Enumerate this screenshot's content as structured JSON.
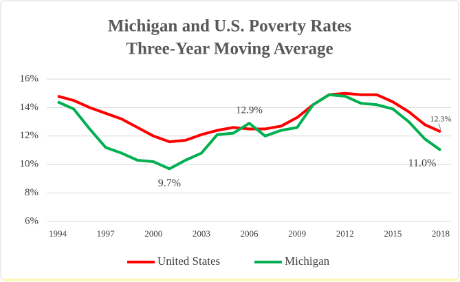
{
  "chart_data": {
    "type": "line",
    "title": "Michigan and U.S. Poverty Rates",
    "subtitle": "Three-Year Moving Average",
    "x": [
      1994,
      1995,
      1996,
      1997,
      1998,
      1999,
      2000,
      2001,
      2002,
      2003,
      2004,
      2005,
      2006,
      2007,
      2008,
      2009,
      2010,
      2011,
      2012,
      2013,
      2014,
      2015,
      2016,
      2017,
      2018
    ],
    "xlim": [
      1994,
      2018
    ],
    "xticks": [
      1994,
      1997,
      2000,
      2003,
      2006,
      2009,
      2012,
      2015,
      2018
    ],
    "ylim": [
      6,
      16
    ],
    "yticks": [
      {
        "value": 6,
        "label": "6%"
      },
      {
        "value": 8,
        "label": "8%"
      },
      {
        "value": 10,
        "label": "10%"
      },
      {
        "value": 12,
        "label": "12%"
      },
      {
        "value": 14,
        "label": "14%"
      },
      {
        "value": 16,
        "label": "16%"
      }
    ],
    "grid": true,
    "legend": "bottom",
    "series": [
      {
        "name": "United States",
        "color": "#ff0000",
        "values": [
          14.8,
          14.5,
          14.0,
          13.6,
          13.2,
          12.6,
          12.0,
          11.6,
          11.7,
          12.1,
          12.4,
          12.6,
          12.5,
          12.5,
          12.7,
          13.3,
          14.2,
          14.9,
          15.0,
          14.9,
          14.9,
          14.4,
          13.7,
          12.8,
          12.3
        ],
        "value_labels": [
          null,
          null,
          null,
          null,
          null,
          null,
          null,
          null,
          null,
          null,
          null,
          null,
          null,
          null,
          null,
          null,
          null,
          null,
          null,
          null,
          null,
          null,
          null,
          null,
          "12.3%"
        ]
      },
      {
        "name": "Michigan",
        "color": "#00b050",
        "values": [
          14.4,
          13.9,
          12.5,
          11.2,
          10.8,
          10.3,
          10.2,
          9.7,
          10.3,
          10.8,
          12.1,
          12.2,
          12.9,
          12.0,
          12.4,
          12.6,
          14.2,
          14.9,
          14.8,
          14.3,
          14.2,
          13.9,
          13.0,
          11.8,
          11.0
        ],
        "value_labels": [
          null,
          null,
          null,
          null,
          null,
          null,
          null,
          "9.7%",
          null,
          null,
          null,
          null,
          "12.9%",
          null,
          null,
          null,
          null,
          null,
          null,
          null,
          null,
          null,
          null,
          null,
          "11.0%"
        ]
      }
    ]
  }
}
